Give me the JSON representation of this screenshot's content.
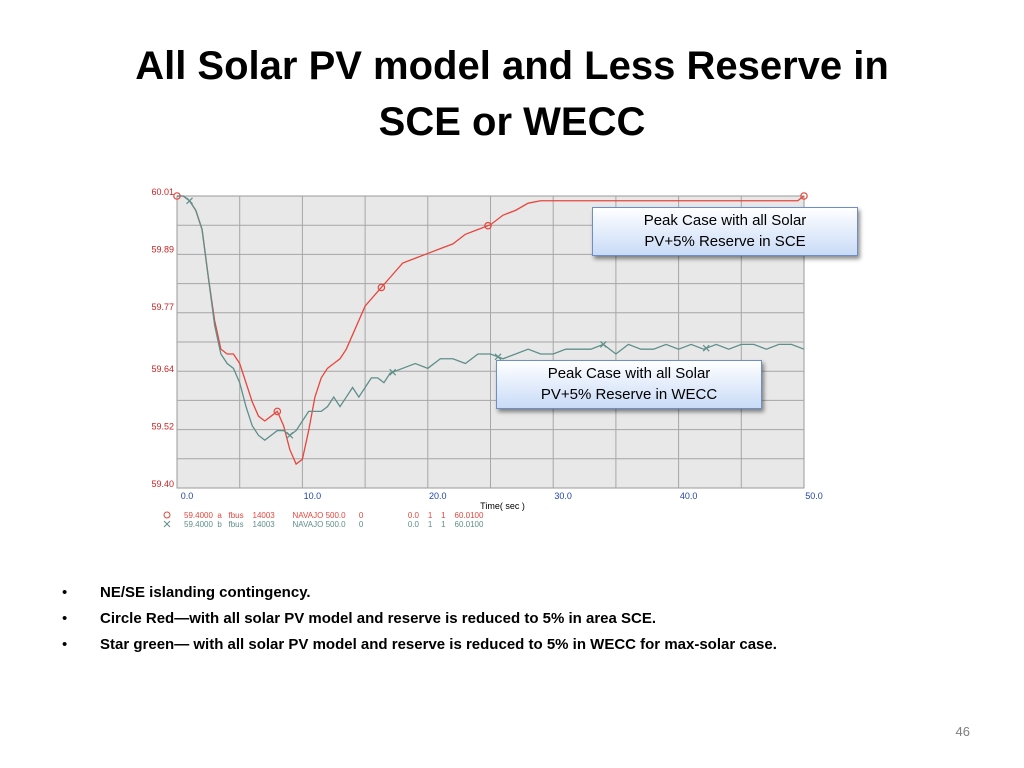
{
  "slide": {
    "title_line1": "All Solar PV model and Less Reserve in",
    "title_line2": "SCE or WECC",
    "page_number": "46"
  },
  "callouts": {
    "sce_line1": "Peak Case with all Solar",
    "sce_line2": "PV+5% Reserve in SCE",
    "wecc_line1": "Peak Case with all Solar",
    "wecc_line2": "PV+5% Reserve in WECC"
  },
  "bullets": [
    "NE/SE islanding contingency.",
    "Circle Red—with all solar PV model and reserve is reduced to 5% in area SCE.",
    "Star green— with all solar PV model and reserve is reduced to 5% in WECC for max-solar case."
  ],
  "chart_data": {
    "type": "line",
    "xlabel": "Time( sec )",
    "ylabel": "",
    "xlim": [
      0,
      50
    ],
    "ylim": [
      59.4,
      60.01
    ],
    "x_ticks": [
      "0.0",
      "10.0",
      "20.0",
      "30.0",
      "40.0",
      "50.0"
    ],
    "x_tick_values": [
      0,
      10,
      20,
      30,
      40,
      50
    ],
    "y_ticks": [
      "59.40",
      "59.52",
      "59.64",
      "59.77",
      "59.89",
      "60.01"
    ],
    "y_tick_values": [
      59.4,
      59.52,
      59.64,
      59.77,
      59.89,
      60.01
    ],
    "grid": true,
    "series": [
      {
        "color": "#e8453c",
        "marker": "circle",
        "legend_text": "59.4000  a   fbus    14003        NAVAJO 500.0      0                    0.0    1    1    60.0100",
        "x": [
          0,
          0.5,
          1,
          1.5,
          2,
          2.5,
          3,
          3.5,
          4,
          4.5,
          5,
          5.5,
          6,
          6.5,
          7,
          7.5,
          8,
          8.5,
          9,
          9.5,
          10,
          10.5,
          11,
          11.5,
          12,
          12.5,
          13,
          13.5,
          14,
          14.5,
          15,
          16,
          17,
          18,
          19,
          20,
          21,
          22,
          23,
          24,
          25,
          26,
          27,
          28,
          29,
          30,
          31,
          32,
          33,
          34,
          35,
          40,
          45,
          48,
          49.5,
          50
        ],
        "y": [
          60.01,
          60.01,
          60.0,
          59.98,
          59.94,
          59.84,
          59.75,
          59.69,
          59.68,
          59.68,
          59.66,
          59.62,
          59.58,
          59.55,
          59.54,
          59.55,
          59.56,
          59.53,
          59.48,
          59.45,
          59.46,
          59.52,
          59.59,
          59.63,
          59.65,
          59.66,
          59.67,
          59.69,
          59.72,
          59.75,
          59.78,
          59.81,
          59.84,
          59.87,
          59.88,
          59.89,
          59.9,
          59.91,
          59.93,
          59.94,
          59.95,
          59.97,
          59.98,
          59.995,
          60.0,
          60.0,
          60.0,
          60.0,
          60.0,
          60.0,
          60.0,
          60.0,
          60.0,
          60.0,
          60.0,
          60.01
        ],
        "marker_x": [
          0,
          8,
          16.3,
          24.8,
          50
        ]
      },
      {
        "color": "#5e8f8a",
        "marker": "x",
        "legend_text": "59.4000  b   fbus    14003        NAVAJO 500.0      0                    0.0    1    1    60.0100",
        "x": [
          0,
          0.5,
          1,
          1.5,
          2,
          2.5,
          3,
          3.5,
          4,
          4.5,
          5,
          5.5,
          6,
          6.5,
          7,
          7.5,
          8,
          8.5,
          9,
          9.5,
          10,
          10.5,
          11,
          11.5,
          12,
          12.5,
          13,
          13.5,
          14,
          14.5,
          15,
          15.5,
          16,
          16.5,
          17,
          18,
          19,
          20,
          21,
          22,
          23,
          24,
          25,
          26,
          27,
          28,
          29,
          30,
          31,
          32,
          33,
          34,
          35,
          36,
          37,
          38,
          39,
          40,
          41,
          42,
          43,
          44,
          45,
          46,
          47,
          48,
          49,
          50
        ],
        "y": [
          60.01,
          60.01,
          60.0,
          59.98,
          59.94,
          59.84,
          59.74,
          59.68,
          59.66,
          59.65,
          59.62,
          59.57,
          59.53,
          59.51,
          59.5,
          59.51,
          59.52,
          59.52,
          59.51,
          59.52,
          59.54,
          59.56,
          59.56,
          59.56,
          59.57,
          59.59,
          59.57,
          59.59,
          59.61,
          59.59,
          59.61,
          59.63,
          59.63,
          59.62,
          59.64,
          59.65,
          59.66,
          59.65,
          59.67,
          59.67,
          59.66,
          59.68,
          59.68,
          59.67,
          59.68,
          59.69,
          59.68,
          59.68,
          59.69,
          59.69,
          59.69,
          59.7,
          59.68,
          59.7,
          59.69,
          59.69,
          59.7,
          59.69,
          59.7,
          59.69,
          59.7,
          59.69,
          59.7,
          59.7,
          59.69,
          59.7,
          59.7,
          59.69
        ],
        "marker_x": [
          1,
          9,
          17.2,
          25.6,
          34,
          42.2
        ]
      }
    ]
  }
}
